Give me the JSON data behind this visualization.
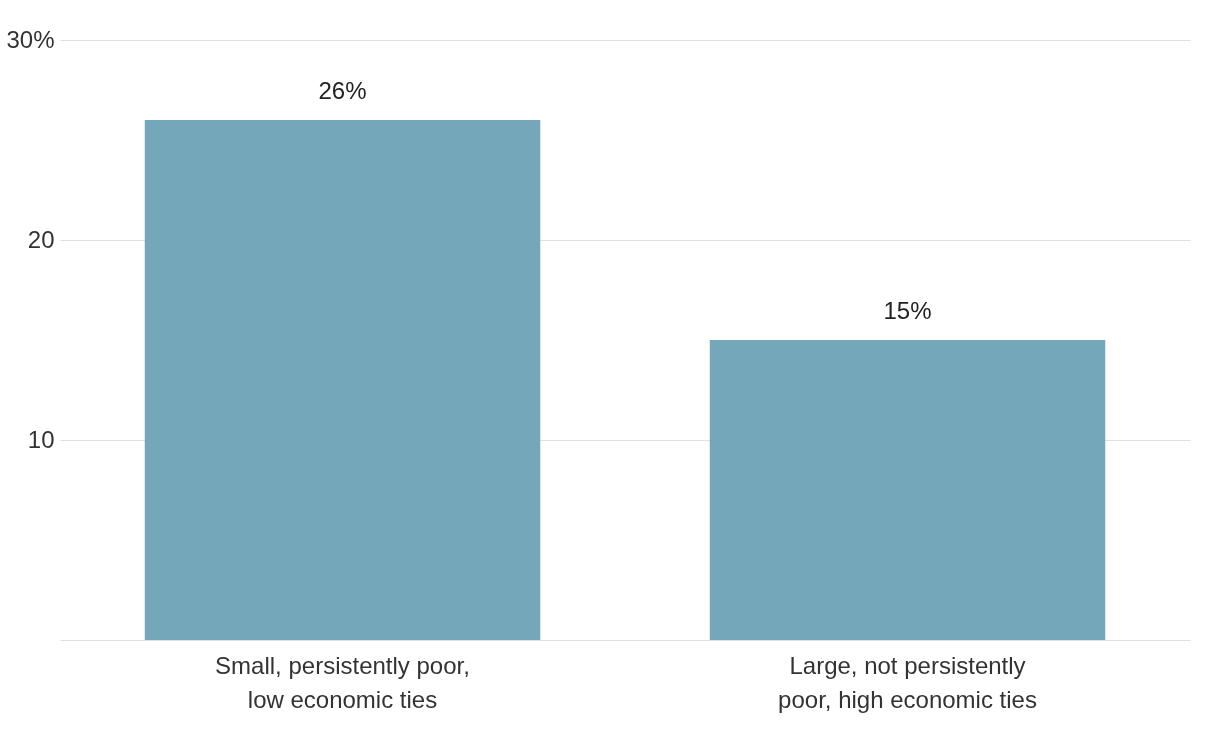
{
  "chart_data": {
    "type": "bar",
    "categories": [
      "Small, persistently poor, low economic ties",
      "Large, not persistently poor, high economic ties"
    ],
    "values": [
      26,
      15
    ],
    "value_labels": [
      "26%",
      "15%"
    ],
    "color": "#75a7ba",
    "ylim": [
      0,
      30
    ],
    "yticks": [
      {
        "value": 0,
        "label": null
      },
      10,
      20,
      {
        "value": 30,
        "label": "30%"
      }
    ],
    "grid": "y"
  }
}
